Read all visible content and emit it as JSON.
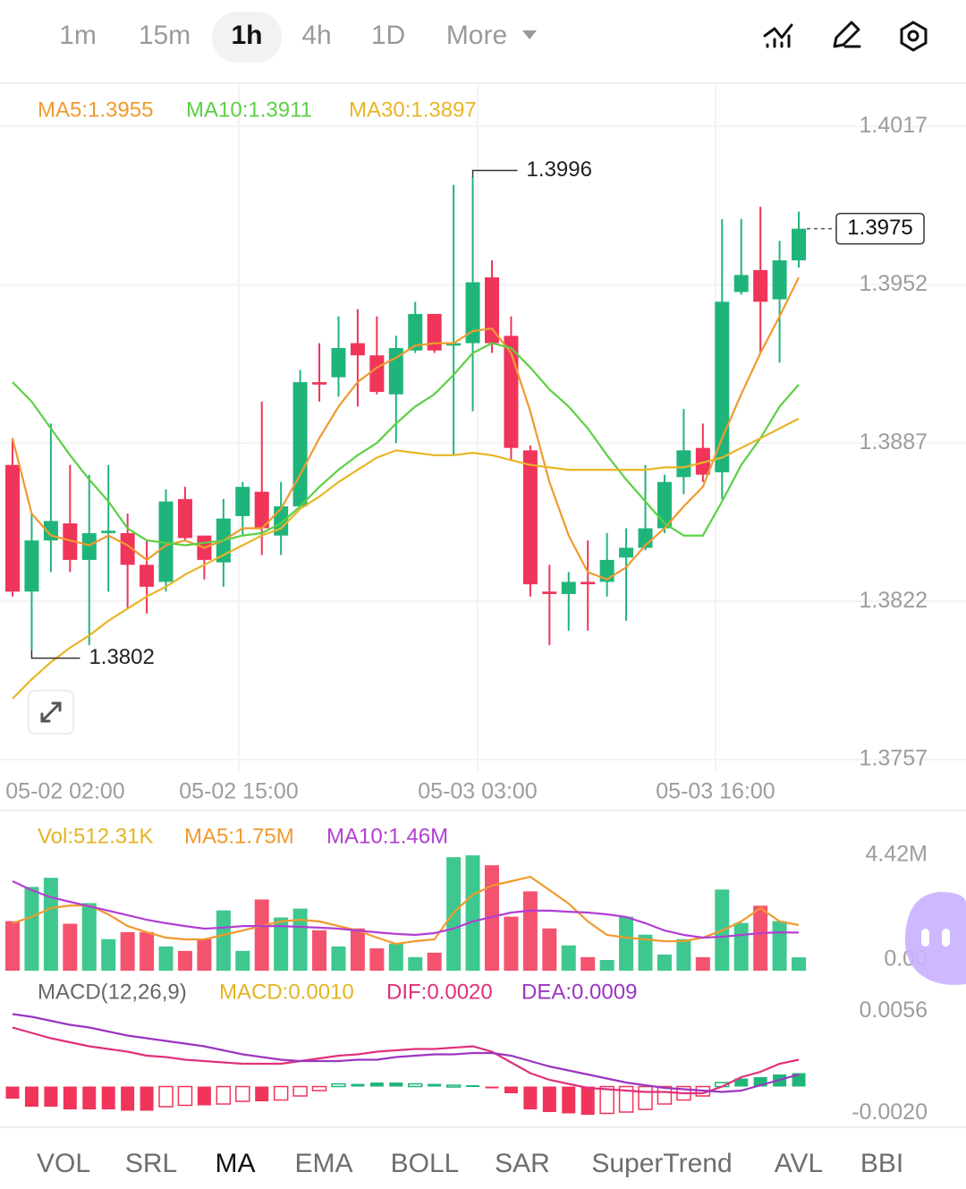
{
  "timeframes": [
    "1m",
    "15m",
    "1h",
    "4h",
    "1D",
    "More"
  ],
  "indicator_tabs": [
    "VOL",
    "SRL",
    "MA",
    "EMA",
    "BOLL",
    "SAR",
    "SuperTrend",
    "AVL",
    "BBI"
  ],
  "chart_data": [
    {
      "type": "candlestick",
      "up_color": "#1fb57a",
      "down_color": "#f0345a",
      "ylim": [
        1.3753,
        1.4034
      ],
      "yticks": [
        1.4017,
        1.3952,
        1.3887,
        1.3822,
        1.3757
      ],
      "grid": true,
      "x_labels": [
        "05-02 02:00",
        "05-02 15:00",
        "05-03 03:00",
        "05-03 16:00"
      ],
      "open": [
        1.3878,
        1.3826,
        1.3847,
        1.3854,
        1.3839,
        1.385,
        1.385,
        1.3837,
        1.383,
        1.3864,
        1.3849,
        1.3838,
        1.3857,
        1.3867,
        1.3849,
        1.3861,
        1.3912,
        1.3914,
        1.3928,
        1.3923,
        1.3907,
        1.3925,
        1.394,
        1.3927,
        1.3928,
        1.3955,
        1.3931,
        1.3884,
        1.3826,
        1.3825,
        1.383,
        1.383,
        1.384,
        1.3844,
        1.3852,
        1.3873,
        1.3885,
        1.3875,
        1.3949,
        1.3958,
        1.3946,
        1.3962
      ],
      "high": [
        1.3889,
        1.3858,
        1.3895,
        1.3878,
        1.3874,
        1.3878,
        1.3858,
        1.3847,
        1.3868,
        1.3869,
        1.3849,
        1.3864,
        1.3871,
        1.3904,
        1.3871,
        1.3917,
        1.3928,
        1.3939,
        1.3942,
        1.3939,
        1.3931,
        1.3945,
        1.394,
        1.3993,
        1.3996,
        1.3962,
        1.3939,
        1.3886,
        1.3837,
        1.3834,
        1.3847,
        1.385,
        1.3852,
        1.3878,
        1.3874,
        1.3901,
        1.3895,
        1.3979,
        1.3979,
        1.3984,
        1.397,
        1.3982
      ],
      "low": [
        1.3824,
        1.3802,
        1.3834,
        1.3834,
        1.3804,
        1.3826,
        1.3819,
        1.3817,
        1.3826,
        1.3847,
        1.3831,
        1.3828,
        1.3849,
        1.3841,
        1.3841,
        1.386,
        1.3904,
        1.3906,
        1.3902,
        1.3907,
        1.3887,
        1.3924,
        1.3924,
        1.3882,
        1.39,
        1.3924,
        1.388,
        1.3824,
        1.3804,
        1.381,
        1.381,
        1.3824,
        1.3814,
        1.3843,
        1.385,
        1.3866,
        1.3871,
        1.3864,
        1.3948,
        1.3924,
        1.392,
        1.3959
      ],
      "close": [
        1.3826,
        1.3847,
        1.3855,
        1.3839,
        1.385,
        1.3851,
        1.3837,
        1.3828,
        1.3863,
        1.3848,
        1.3839,
        1.3856,
        1.3869,
        1.3852,
        1.3861,
        1.3912,
        1.3911,
        1.3926,
        1.3923,
        1.3908,
        1.3926,
        1.394,
        1.3925,
        1.3928,
        1.3953,
        1.3928,
        1.3885,
        1.3829,
        1.3825,
        1.383,
        1.3829,
        1.3839,
        1.3844,
        1.3852,
        1.3871,
        1.3884,
        1.3874,
        1.3945,
        1.3956,
        1.3945,
        1.3962,
        1.3975
      ],
      "series": [
        {
          "name": "MA5:1.3955",
          "color": "#ef9a2f",
          "values": [
            1.3889,
            1.3858,
            1.3849,
            1.3847,
            1.3845,
            1.3849,
            1.3845,
            1.3839,
            1.3845,
            1.3847,
            1.3844,
            1.3847,
            1.3852,
            1.3852,
            1.386,
            1.3874,
            1.3889,
            1.3902,
            1.3912,
            1.3918,
            1.3922,
            1.3927,
            1.3928,
            1.3928,
            1.3933,
            1.3934,
            1.3924,
            1.39,
            1.3871,
            1.3849,
            1.3834,
            1.3831,
            1.3836,
            1.3845,
            1.3852,
            1.3861,
            1.3869,
            1.3889,
            1.3907,
            1.3924,
            1.3939,
            1.3955
          ]
        },
        {
          "name": "MA10:1.3911",
          "color": "#5cd044",
          "values": [
            1.3912,
            1.3904,
            1.3893,
            1.3882,
            1.3872,
            1.3863,
            1.3852,
            1.3847,
            1.3846,
            1.3845,
            1.3846,
            1.3847,
            1.3849,
            1.385,
            1.3854,
            1.3861,
            1.3869,
            1.3876,
            1.3882,
            1.3887,
            1.3895,
            1.3902,
            1.3907,
            1.3915,
            1.3924,
            1.3928,
            1.3926,
            1.3918,
            1.3909,
            1.3902,
            1.3893,
            1.3882,
            1.3872,
            1.3863,
            1.3854,
            1.3849,
            1.3849,
            1.3863,
            1.3878,
            1.3889,
            1.3902,
            1.3911
          ]
        },
        {
          "name": "MA30:1.3897",
          "color": "#e9b526",
          "values": [
            1.3782,
            1.379,
            1.3797,
            1.3803,
            1.3808,
            1.3814,
            1.3819,
            1.3824,
            1.3828,
            1.3833,
            1.3837,
            1.3841,
            1.3845,
            1.3849,
            1.3852,
            1.386,
            1.3865,
            1.3871,
            1.3876,
            1.3881,
            1.3884,
            1.3883,
            1.3882,
            1.3882,
            1.3883,
            1.3882,
            1.388,
            1.3878,
            1.3877,
            1.3876,
            1.3876,
            1.3876,
            1.3876,
            1.3876,
            1.3877,
            1.3877,
            1.3879,
            1.3881,
            1.3885,
            1.3889,
            1.3893,
            1.3897
          ]
        }
      ],
      "max_label": 1.3996,
      "min_label": 1.3802,
      "last_price": 1.3975
    },
    {
      "type": "bar",
      "up_color": "#3ec88f",
      "down_color": "#f4536f",
      "ylim": [
        0,
        4800000
      ],
      "yticks": [
        {
          "value": 4420000,
          "label": "4.42M"
        },
        {
          "value": 0,
          "label": "0.00"
        }
      ],
      "series": [
        {
          "name": "Vol:512.31K",
          "color": "#e4b422",
          "values": [
            1900000,
            3210000,
            3560000,
            1800000,
            2590000,
            1210000,
            1480000,
            1480000,
            930000,
            760000,
            1210000,
            2310000,
            760000,
            2730000,
            2040000,
            2380000,
            1550000,
            930000,
            1620000,
            860000,
            1040000,
            520000,
            690000,
            4350000,
            4420000,
            4040000,
            2070000,
            3040000,
            1620000,
            970000,
            520000,
            410000,
            2070000,
            1380000,
            620000,
            1210000,
            520000,
            3110000,
            1830000,
            2490000,
            1900000,
            512310
          ]
        },
        {
          "name": "MA5:1.75M",
          "color": "#ef9a2f",
          "values": [
            1820000,
            2060000,
            2400000,
            2500000,
            2500000,
            2160000,
            1710000,
            1470000,
            1270000,
            1200000,
            1200000,
            1370000,
            1540000,
            1710000,
            1890000,
            1950000,
            1890000,
            1710000,
            1540000,
            1270000,
            1030000,
            1130000,
            1200000,
            2230000,
            2910000,
            3260000,
            3430000,
            3600000,
            3090000,
            2570000,
            1890000,
            1370000,
            1270000,
            1200000,
            1130000,
            1130000,
            1270000,
            1540000,
            1890000,
            2400000,
            1890000,
            1750000
          ]
        },
        {
          "name": "MA10:1.46M",
          "color": "#b23fd3",
          "values": [
            3430000,
            3090000,
            2810000,
            2640000,
            2470000,
            2300000,
            2130000,
            1950000,
            1820000,
            1710000,
            1610000,
            1650000,
            1710000,
            1710000,
            1710000,
            1680000,
            1650000,
            1610000,
            1540000,
            1470000,
            1410000,
            1370000,
            1440000,
            1610000,
            1890000,
            2060000,
            2230000,
            2300000,
            2300000,
            2260000,
            2230000,
            2160000,
            2060000,
            1820000,
            1540000,
            1370000,
            1270000,
            1300000,
            1370000,
            1440000,
            1470000,
            1460000
          ]
        }
      ]
    },
    {
      "type": "macd",
      "title": "MACD(12,26,9)",
      "up_color": "#1fb57a",
      "down_color": "#f0345a",
      "ylim": [
        -0.0027,
        0.0063
      ],
      "yticks": [
        0.0056,
        {
          "value": -0.002,
          "label": "-0.0020"
        }
      ],
      "series": [
        {
          "name": "MACD:0.0010",
          "color": "#e4b422",
          "values": [
            -0.0009,
            -0.0015,
            -0.0015,
            -0.0017,
            -0.0017,
            -0.0017,
            -0.0018,
            -0.0018,
            -0.0015,
            -0.0014,
            -0.0014,
            -0.0013,
            -0.0011,
            -0.0011,
            -0.001,
            -0.0007,
            -0.0003,
            0.0002,
            0.0002,
            0.0003,
            0.0003,
            0.0002,
            0.0002,
            0.0001,
            0.0001,
            -0.0001,
            -0.0005,
            -0.0017,
            -0.0019,
            -0.002,
            -0.0021,
            -0.002,
            -0.0019,
            -0.0017,
            -0.0013,
            -0.001,
            -0.0007,
            0.0003,
            0.0006,
            0.0007,
            0.0009,
            0.001
          ]
        },
        {
          "name": "DIF:0.0020",
          "color": "#e0307a",
          "values": [
            0.0044,
            0.004,
            0.0036,
            0.0033,
            0.003,
            0.0028,
            0.0026,
            0.0023,
            0.0022,
            0.002,
            0.0019,
            0.0018,
            0.0017,
            0.0017,
            0.0017,
            0.0019,
            0.0021,
            0.0023,
            0.0024,
            0.0026,
            0.0027,
            0.0028,
            0.0028,
            0.0029,
            0.003,
            0.0026,
            0.0018,
            0.001,
            0.0005,
            0.0002,
            -0.0001,
            -0.0002,
            -0.0003,
            -0.0004,
            -0.0004,
            -0.0005,
            -0.0005,
            0.0,
            0.0007,
            0.0011,
            0.0017,
            0.002
          ]
        },
        {
          "name": "DEA:0.0009",
          "color": "#9b35c0",
          "values": [
            0.0054,
            0.0052,
            0.0049,
            0.0046,
            0.0044,
            0.0041,
            0.0038,
            0.0036,
            0.0034,
            0.0032,
            0.003,
            0.0027,
            0.0024,
            0.0022,
            0.002,
            0.0019,
            0.0019,
            0.0019,
            0.002,
            0.002,
            0.0022,
            0.0023,
            0.0024,
            0.0024,
            0.0025,
            0.0025,
            0.0023,
            0.0019,
            0.0015,
            0.0012,
            0.0009,
            0.0006,
            0.0003,
            0.0001,
            -0.0001,
            -0.0002,
            -0.0003,
            -0.0004,
            -0.0003,
            0.0001,
            0.0005,
            0.0009
          ]
        }
      ]
    }
  ]
}
